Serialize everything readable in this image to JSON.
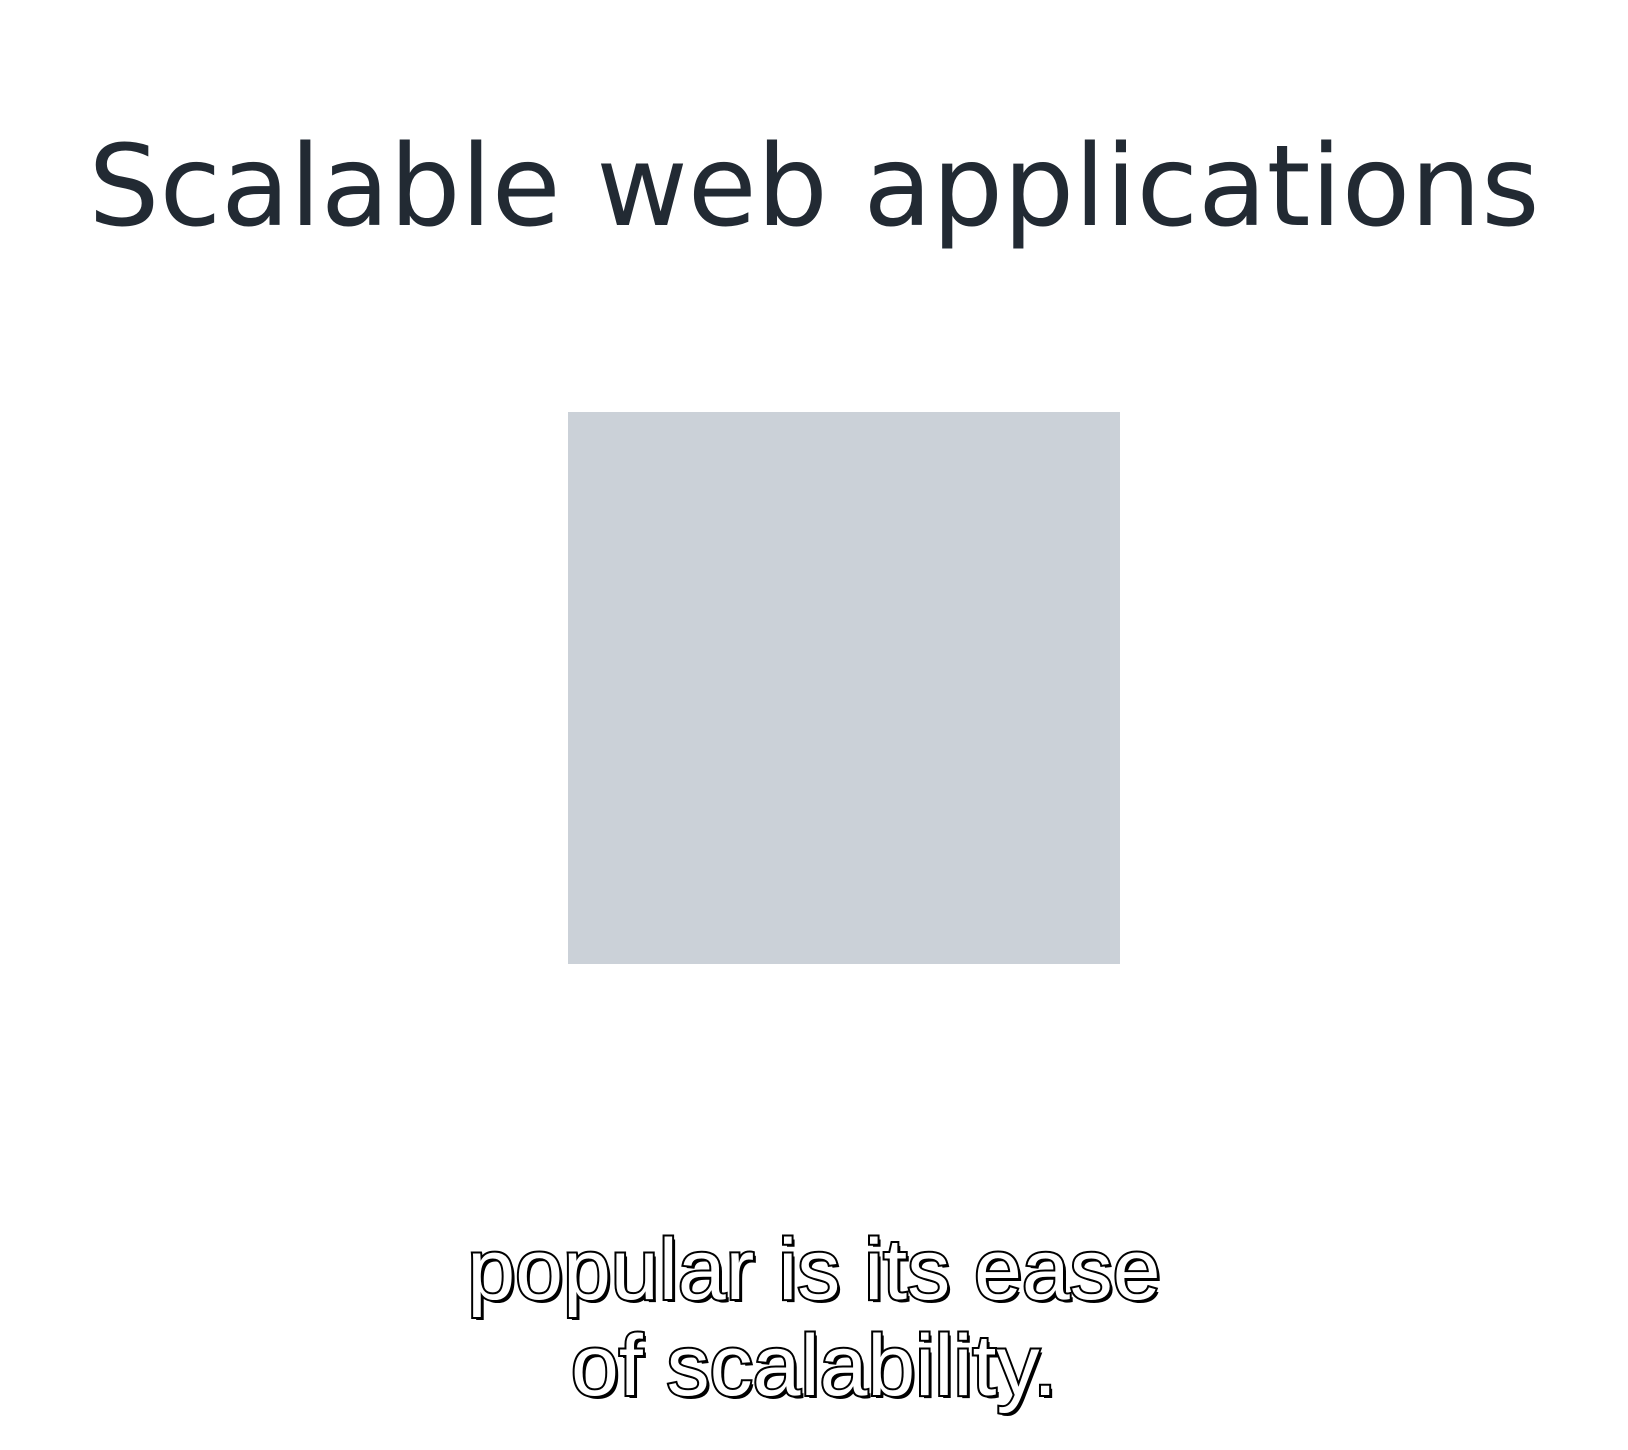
{
  "slide": {
    "title": "Scalable web applications"
  },
  "caption": {
    "lines": [
      "popular is its ease",
      "of scalability."
    ]
  },
  "colors": {
    "background": "#ffffff",
    "title_text": "#222a33",
    "placeholder": "#cbd1d8",
    "caption_fill": "#ffffff",
    "caption_outline": "#000000"
  }
}
